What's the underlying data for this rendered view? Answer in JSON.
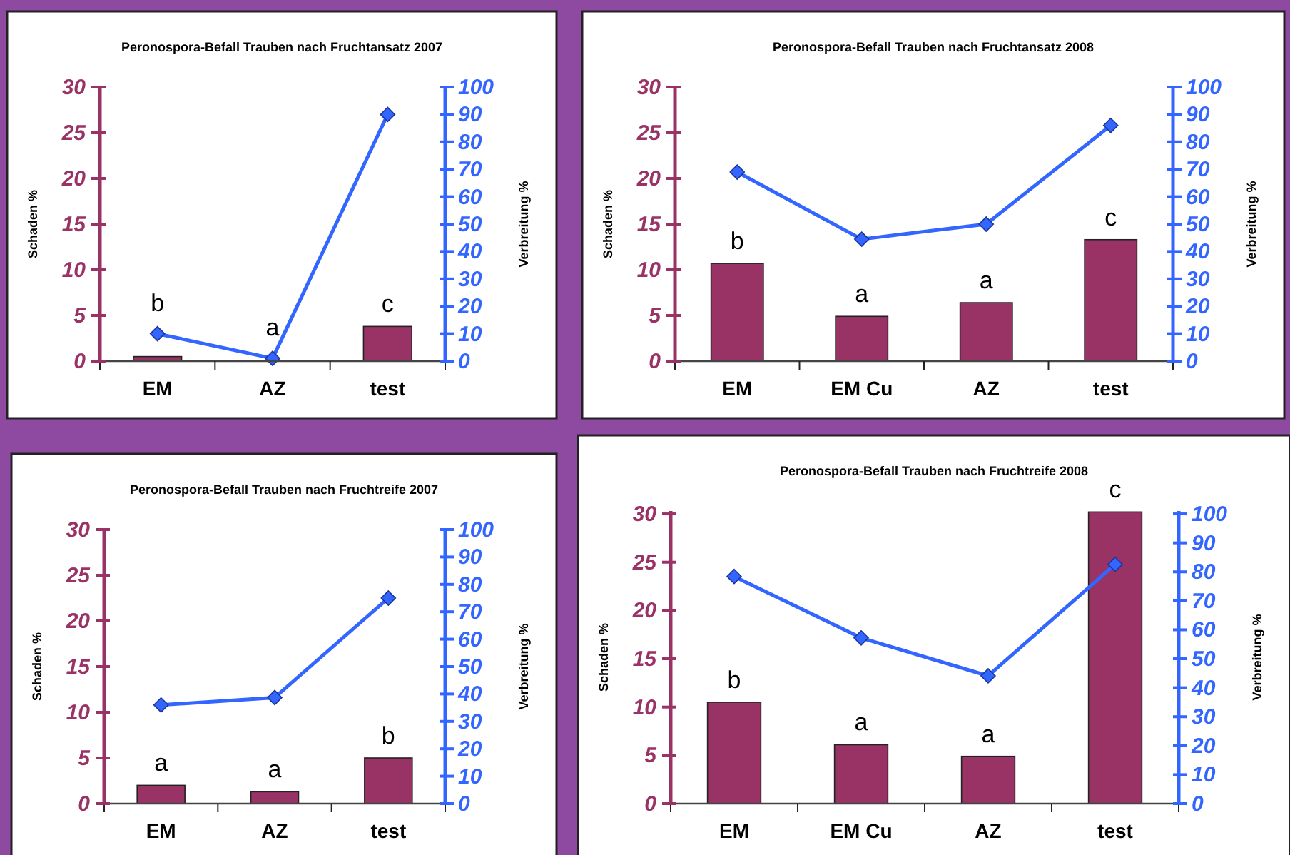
{
  "chart_data": [
    {
      "type": "bar",
      "title": "Peronospora-Befall Trauben nach Fruchtansatz 2007",
      "ylabel": "Schaden %",
      "y2label": "Verbreitung %",
      "categories": [
        "EM",
        "AZ",
        "test"
      ],
      "series": [
        {
          "color": "#993366",
          "values": [
            0.5,
            0,
            3.8
          ]
        },
        {
          "type": "line",
          "axis": "y2",
          "color": "#3366ff",
          "marker": "diamond",
          "values": [
            10,
            1,
            90
          ]
        }
      ],
      "ylim": [
        0,
        30
      ],
      "yticks": [
        0,
        5,
        10,
        15,
        20,
        25,
        30
      ],
      "y2lim": [
        0,
        100
      ],
      "y2ticks": [
        0,
        10,
        20,
        30,
        40,
        50,
        60,
        70,
        80,
        90,
        100
      ],
      "grid": false,
      "annotations": [
        "b",
        "a",
        "c"
      ]
    },
    {
      "type": "bar",
      "title": "Peronospora-Befall Trauben nach Fruchtansatz 2008",
      "ylabel": "Schaden %",
      "y2label": "Verbreitung %",
      "categories": [
        "EM",
        "EM Cu",
        "AZ",
        "test"
      ],
      "series": [
        {
          "color": "#993366",
          "values": [
            10.7,
            4.9,
            6.4,
            13.3
          ]
        },
        {
          "type": "line",
          "axis": "y2",
          "color": "#3366ff",
          "marker": "diamond",
          "values": [
            69,
            44.5,
            50,
            86
          ]
        }
      ],
      "ylim": [
        0,
        30
      ],
      "yticks": [
        0,
        5,
        10,
        15,
        20,
        25,
        30
      ],
      "y2lim": [
        0,
        100
      ],
      "y2ticks": [
        0,
        10,
        20,
        30,
        40,
        50,
        60,
        70,
        80,
        90,
        100
      ],
      "grid": false,
      "annotations": [
        "b",
        "a",
        "a",
        "c"
      ]
    },
    {
      "type": "bar",
      "title": "Peronospora-Befall Trauben nach Fruchtreife 2007",
      "ylabel": "Schaden %",
      "y2label": "Verbreitung %",
      "categories": [
        "EM",
        "AZ",
        "test"
      ],
      "series": [
        {
          "color": "#993366",
          "values": [
            2,
            1.3,
            5
          ]
        },
        {
          "type": "line",
          "axis": "y2",
          "color": "#3366ff",
          "marker": "diamond",
          "values": [
            36,
            38.7,
            75
          ]
        }
      ],
      "ylim": [
        0,
        30
      ],
      "yticks": [
        0,
        5,
        10,
        15,
        20,
        25,
        30
      ],
      "y2lim": [
        0,
        100
      ],
      "y2ticks": [
        0,
        10,
        20,
        30,
        40,
        50,
        60,
        70,
        80,
        90,
        100
      ],
      "grid": false,
      "annotations": [
        "a",
        "a",
        "b"
      ]
    },
    {
      "type": "bar",
      "title": "Peronospora-Befall Trauben nach Fruchtreife 2008",
      "ylabel": "Schaden %",
      "y2label": "Verbreitung %",
      "categories": [
        "EM",
        "EM Cu",
        "AZ",
        "test"
      ],
      "series": [
        {
          "color": "#993366",
          "values": [
            10.5,
            6.1,
            4.9,
            30.2
          ]
        },
        {
          "type": "line",
          "axis": "y2",
          "color": "#3366ff",
          "marker": "diamond",
          "values": [
            78.4,
            57.2,
            44.1,
            82.6
          ]
        }
      ],
      "ylim": [
        0,
        30.3
      ],
      "yticks": [
        0,
        5,
        10,
        15,
        20,
        25,
        30
      ],
      "y2lim": [
        0,
        101
      ],
      "y2ticks": [
        0,
        10,
        20,
        30,
        40,
        50,
        60,
        70,
        80,
        90,
        100
      ],
      "grid": false,
      "annotations": [
        "b",
        "a",
        "a",
        "c"
      ]
    }
  ]
}
